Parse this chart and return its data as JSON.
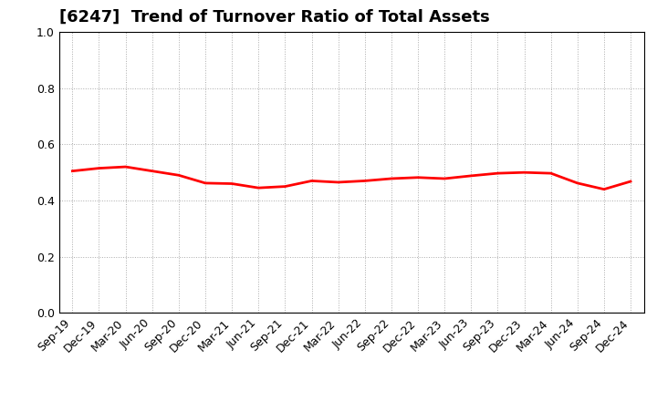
{
  "title": "[6247]  Trend of Turnover Ratio of Total Assets",
  "x_labels": [
    "Sep-19",
    "Dec-19",
    "Mar-20",
    "Jun-20",
    "Sep-20",
    "Dec-20",
    "Mar-21",
    "Jun-21",
    "Sep-21",
    "Dec-21",
    "Mar-22",
    "Jun-22",
    "Sep-22",
    "Dec-22",
    "Mar-23",
    "Jun-23",
    "Sep-23",
    "Dec-23",
    "Mar-24",
    "Jun-24",
    "Sep-24",
    "Dec-24"
  ],
  "values": [
    0.505,
    0.515,
    0.52,
    0.505,
    0.49,
    0.462,
    0.46,
    0.445,
    0.45,
    0.47,
    0.465,
    0.47,
    0.478,
    0.482,
    0.478,
    0.488,
    0.497,
    0.5,
    0.497,
    0.462,
    0.44,
    0.468
  ],
  "line_color": "#FF0000",
  "line_width": 2.0,
  "ylim": [
    0.0,
    1.0
  ],
  "yticks": [
    0.0,
    0.2,
    0.4,
    0.6,
    0.8,
    1.0
  ],
  "background_color": "#ffffff",
  "grid_color": "#aaaaaa",
  "title_fontsize": 13,
  "tick_fontsize": 9
}
